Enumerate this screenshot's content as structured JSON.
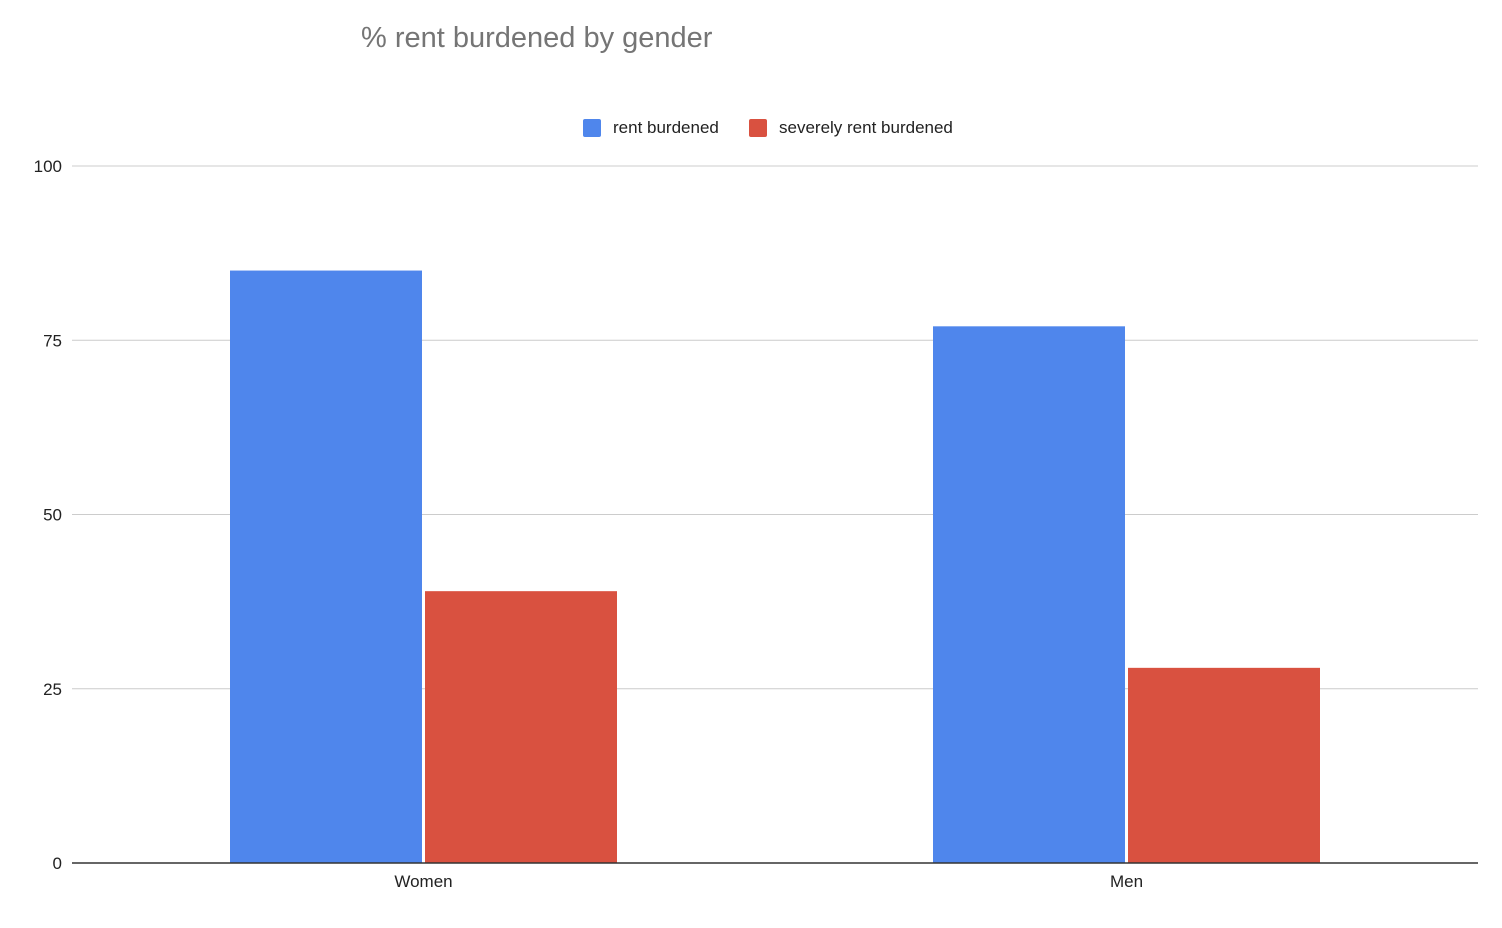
{
  "chart_data": {
    "type": "bar",
    "title": "% rent burdened by gender",
    "xlabel": "",
    "ylabel": "",
    "categories": [
      "Women",
      "Men"
    ],
    "series": [
      {
        "name": "rent burdened",
        "color": "#4f86ec",
        "values": [
          85,
          77
        ]
      },
      {
        "name": "severely rent burdened",
        "color": "#d95140",
        "values": [
          39,
          28
        ]
      }
    ],
    "ylim": [
      0,
      100
    ],
    "yticks": [
      0,
      25,
      50,
      75,
      100
    ],
    "grid": true,
    "legend_position": "top-center"
  }
}
